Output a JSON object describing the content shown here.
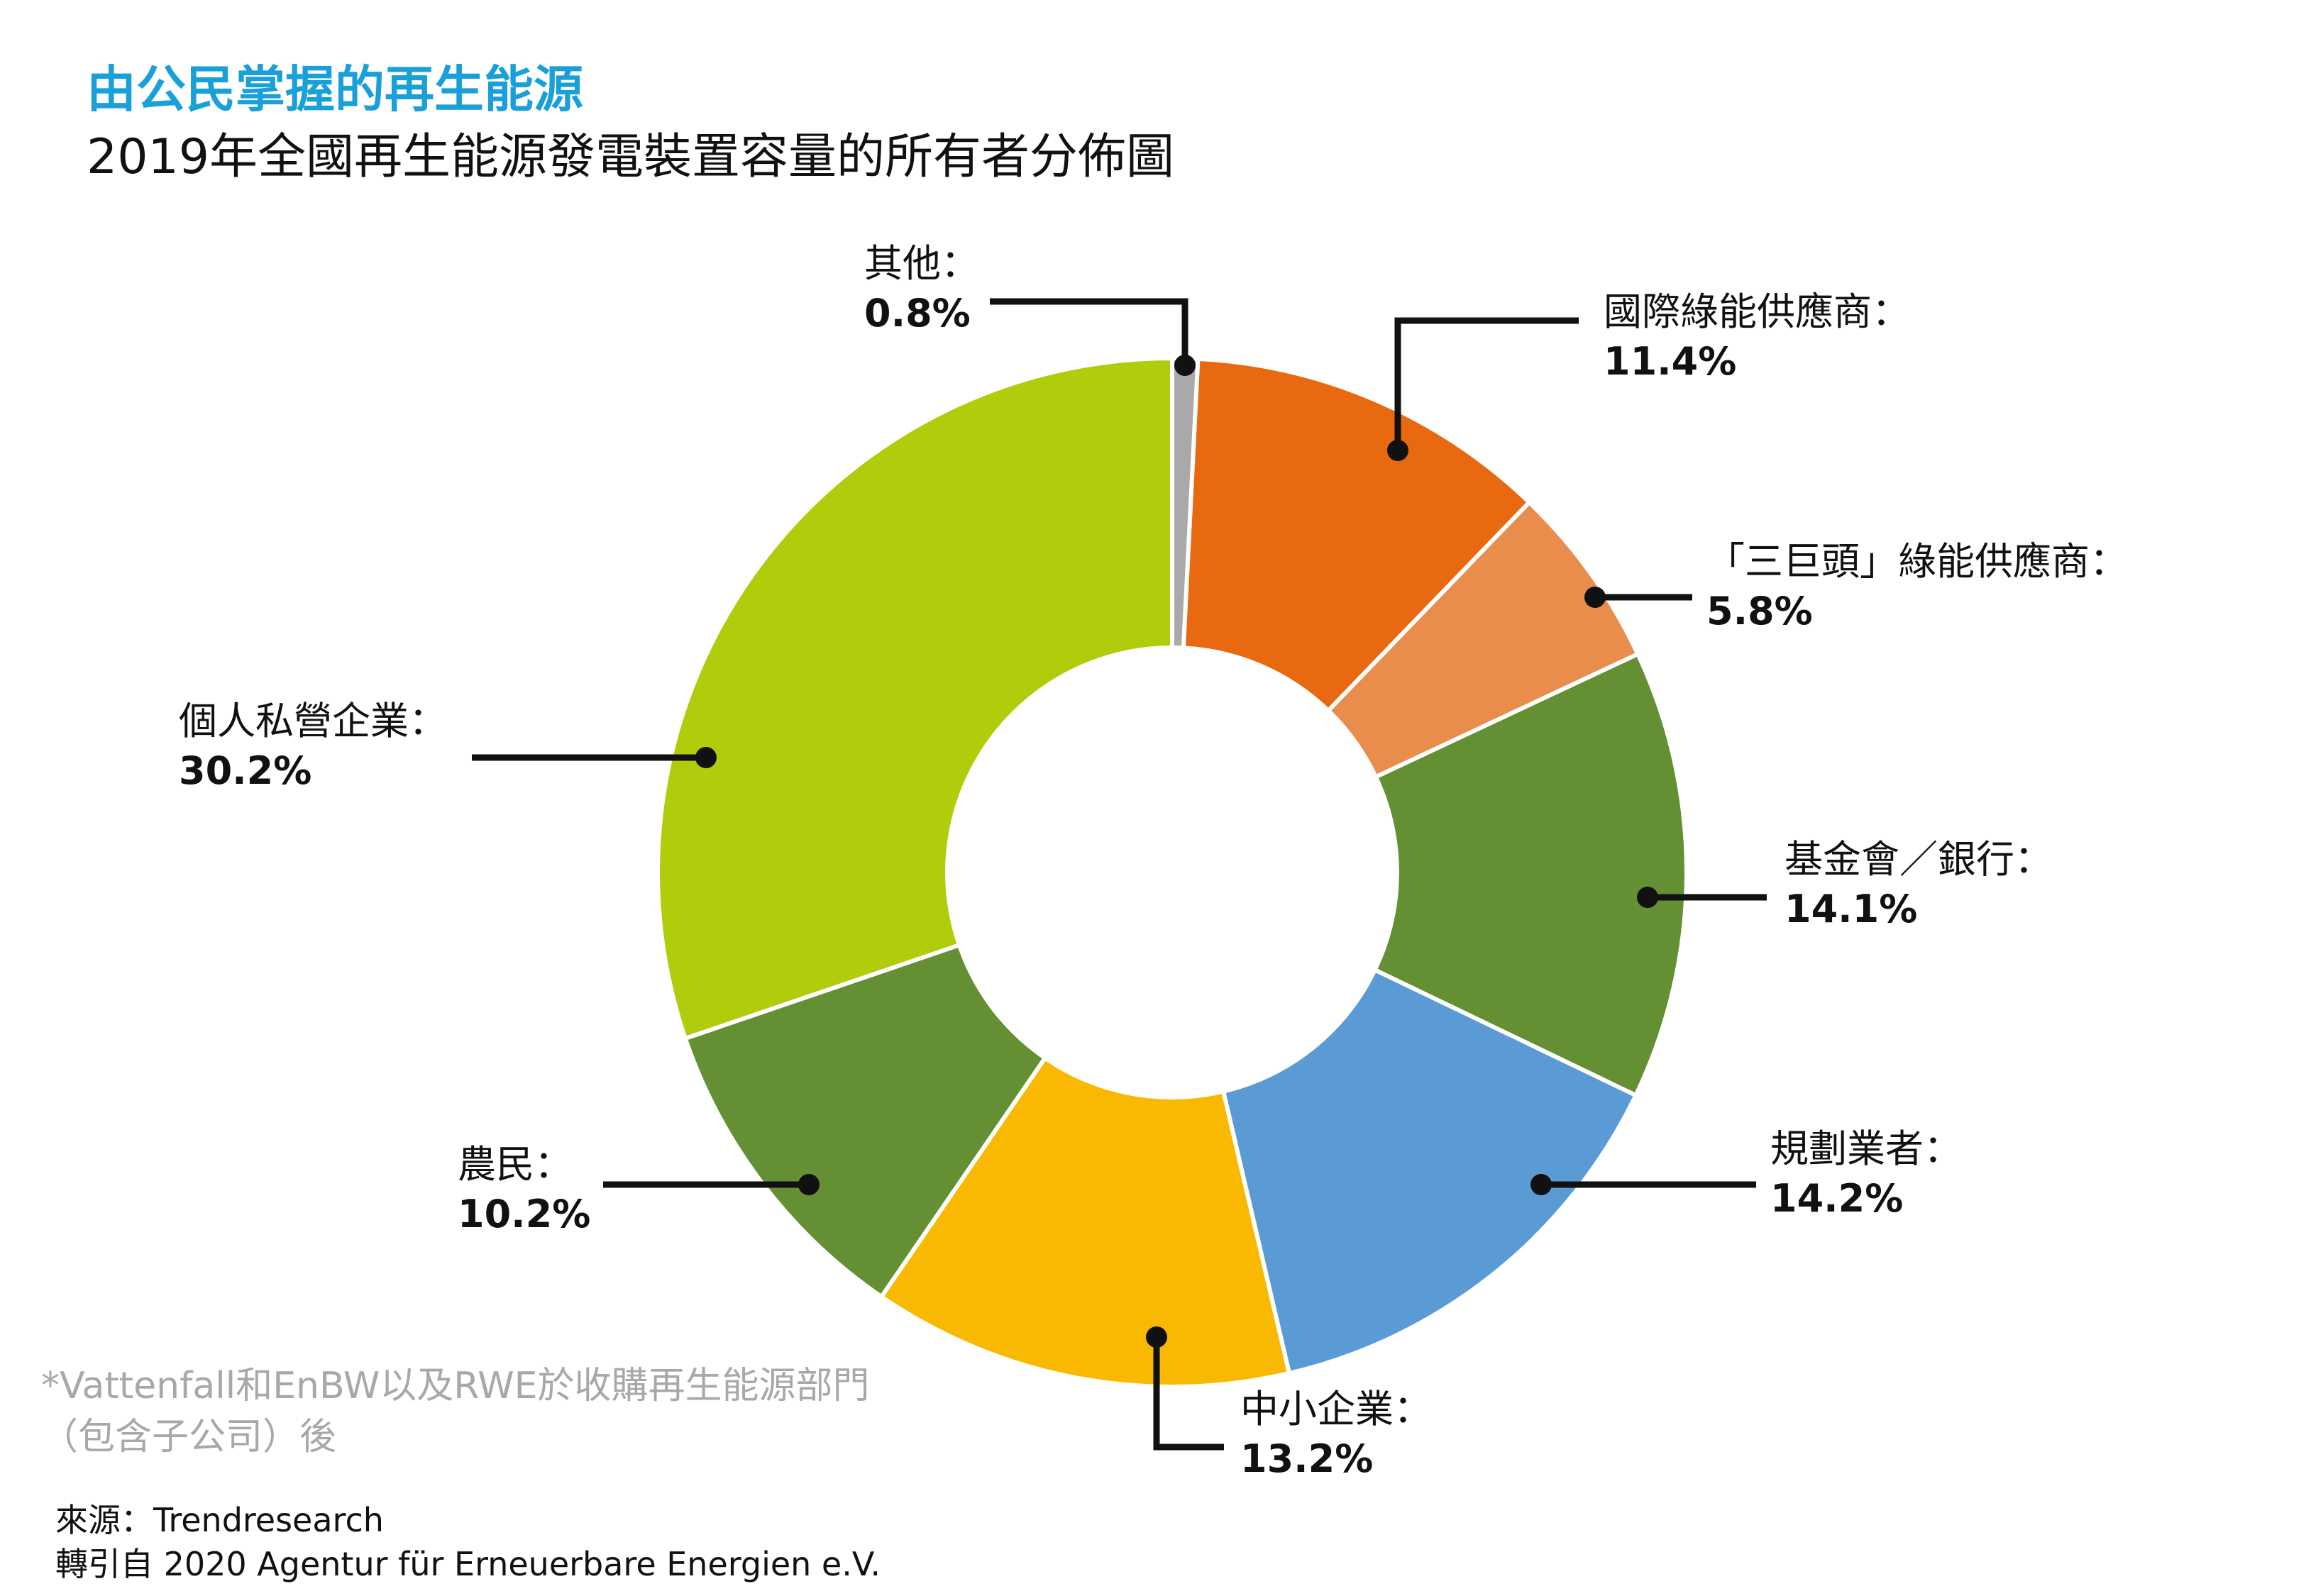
{
  "title": "由公民掌握的再生能源",
  "subtitle": "2019年全國再生能源發電裝置容量的所有者分佈圖",
  "footnote": {
    "line1": "*Vattenfall和EnBW以及RWE於收購再生能源部門",
    "line2": "（包含子公司）後"
  },
  "source": {
    "line1": "來源：Trendresearch",
    "line2": "轉引自 2020 Agentur für Erneuerbare Energien e.V."
  },
  "colors": {
    "accent": "#1aa0d8",
    "leader": "#111111"
  },
  "chart_data": {
    "type": "pie",
    "variant": "donut",
    "title": "2019年全國再生能源發電裝置容量的所有者分佈圖",
    "unit": "%",
    "slices": [
      {
        "label": "其他：",
        "value": 0.8,
        "display": "0.8%",
        "color": "#a9a9a9"
      },
      {
        "label": "國際綠能供應商：",
        "value": 11.4,
        "display": "11.4%",
        "color": "#e8690f"
      },
      {
        "label": "「三巨頭」綠能供應商：",
        "value": 5.8,
        "display": "5.8%",
        "color": "#e98d4d"
      },
      {
        "label": "基金會／銀行：",
        "value": 14.1,
        "display": "14.1%",
        "color": "#648f33"
      },
      {
        "label": "規劃業者：",
        "value": 14.2,
        "display": "14.2%",
        "color": "#5b9bd5"
      },
      {
        "label": "中小企業：",
        "value": 13.2,
        "display": "13.2%",
        "color": "#f9b901"
      },
      {
        "label": "農民：",
        "value": 10.2,
        "display": "10.2%",
        "color": "#648f33"
      },
      {
        "label": "個人私營企業：",
        "value": 30.2,
        "display": "30.2%",
        "color": "#b0cc0a"
      }
    ]
  }
}
